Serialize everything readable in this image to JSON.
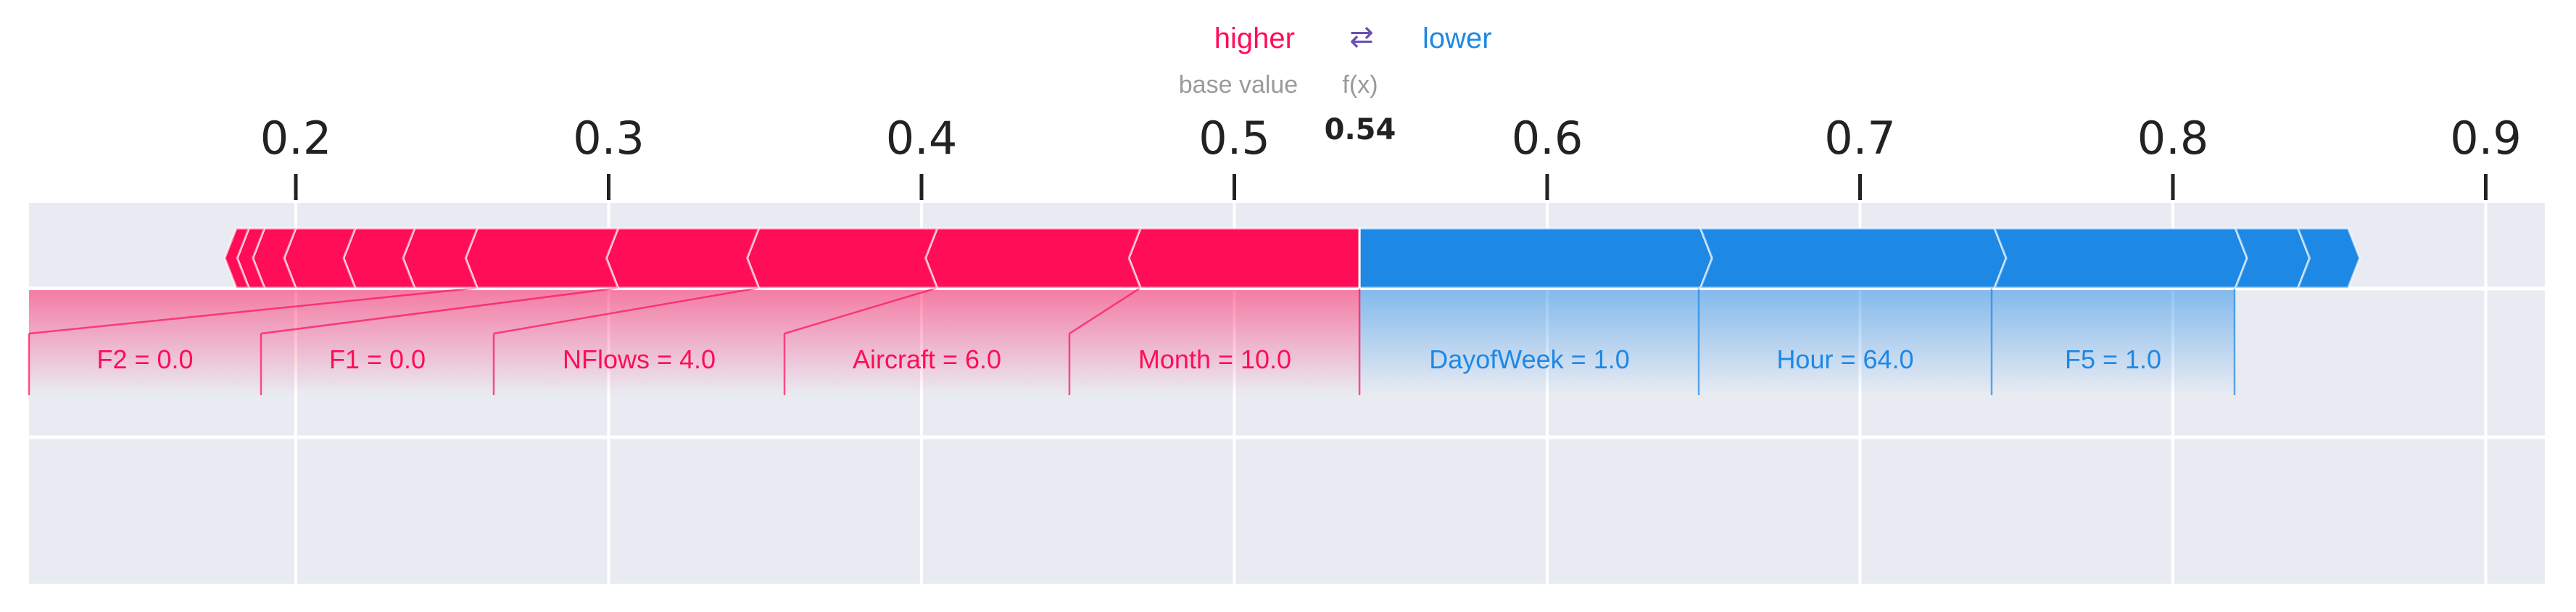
{
  "chart_data": {
    "type": "force",
    "legend": {
      "higher": "higher",
      "lower": "lower",
      "arrow": "⇄"
    },
    "base_value_label": "base value",
    "fx_label": "f(x)",
    "fx_value": 0.54,
    "fx_value_text": "0.54",
    "xlim": [
      0.115,
      0.935
    ],
    "ticks": [
      {
        "value": 0.2,
        "label": "0.2"
      },
      {
        "value": 0.3,
        "label": "0.3"
      },
      {
        "value": 0.4,
        "label": "0.4"
      },
      {
        "value": 0.5,
        "label": "0.5"
      },
      {
        "value": 0.6,
        "label": "0.6"
      },
      {
        "value": 0.7,
        "label": "0.7"
      },
      {
        "value": 0.8,
        "label": "0.8"
      },
      {
        "value": 0.9,
        "label": "0.9"
      }
    ],
    "positive_features": [
      {
        "label": "Month = 10.0",
        "start": 0.54,
        "end": 0.47
      },
      {
        "label": "Aircraft = 6.0",
        "start": 0.47,
        "end": 0.405
      },
      {
        "label": "NFlows = 4.0",
        "start": 0.405,
        "end": 0.348
      },
      {
        "label": "F1 = 0.0",
        "start": 0.348,
        "end": 0.303
      },
      {
        "label": "F2 = 0.0",
        "start": 0.303,
        "end": 0.258
      },
      {
        "label": "",
        "start": 0.258,
        "end": 0.238
      },
      {
        "label": "",
        "start": 0.238,
        "end": 0.219
      },
      {
        "label": "",
        "start": 0.219,
        "end": 0.2
      },
      {
        "label": "",
        "start": 0.2,
        "end": 0.19
      },
      {
        "label": "",
        "start": 0.19,
        "end": 0.185
      },
      {
        "label": "",
        "start": 0.185,
        "end": 0.181
      }
    ],
    "negative_features": [
      {
        "label": "DayofWeek = 1.0",
        "start": 0.54,
        "end": 0.649
      },
      {
        "label": "Hour = 64.0",
        "start": 0.649,
        "end": 0.743
      },
      {
        "label": "F5 = 1.0",
        "start": 0.743,
        "end": 0.82
      },
      {
        "label": "",
        "start": 0.82,
        "end": 0.84
      },
      {
        "label": "",
        "start": 0.84,
        "end": 0.856
      }
    ],
    "colors": {
      "positive": "#ff0d57",
      "negative": "#1e88e5",
      "background": "#e9ebf2",
      "grid": "#ffffff"
    }
  }
}
